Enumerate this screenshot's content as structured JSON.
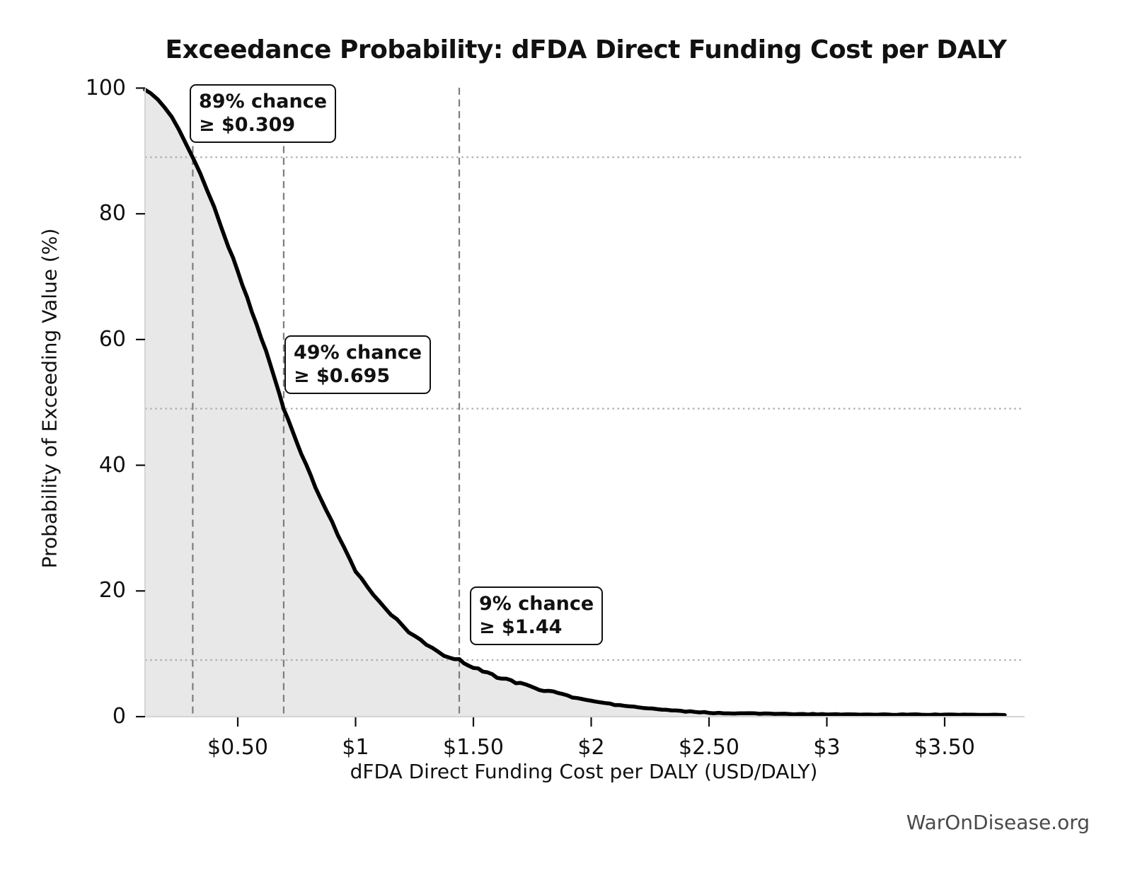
{
  "watermark": "WarOnDisease.org",
  "chart_data": {
    "type": "line",
    "subtype": "exceedance-ccdf",
    "title": "Exceedance Probability: dFDA Direct Funding Cost per DALY",
    "xlabel": "dFDA Direct Funding Cost per DALY (USD/DALY)",
    "ylabel": "Probability of Exceeding Value (%)",
    "x_tick_labels": [
      "$0.50",
      "$1",
      "$1.50",
      "$2",
      "$2.50",
      "$3",
      "$3.50"
    ],
    "x_tick_values": [
      0.5,
      1,
      1.5,
      2,
      2.5,
      3,
      3.5
    ],
    "y_tick_labels": [
      "0",
      "20",
      "40",
      "60",
      "80",
      "100"
    ],
    "y_tick_values": [
      0,
      20,
      40,
      60,
      80,
      100
    ],
    "xlim": [
      0.107,
      3.83
    ],
    "ylim": [
      0,
      100
    ],
    "grid": false,
    "legend": "none",
    "series_name": "Probability of exceeding cost value",
    "curve_ccdf": [
      [
        0.107,
        99.9
      ],
      [
        0.13,
        99.3
      ],
      [
        0.16,
        98.3
      ],
      [
        0.19,
        97.0
      ],
      [
        0.22,
        95.3
      ],
      [
        0.25,
        93.3
      ],
      [
        0.28,
        91.2
      ],
      [
        0.309,
        89.0
      ],
      [
        0.34,
        86.5
      ],
      [
        0.37,
        83.8
      ],
      [
        0.4,
        81.0
      ],
      [
        0.43,
        78.0
      ],
      [
        0.46,
        74.9
      ],
      [
        0.5,
        70.8
      ],
      [
        0.54,
        66.6
      ],
      [
        0.58,
        62.4
      ],
      [
        0.62,
        58.1
      ],
      [
        0.66,
        53.5
      ],
      [
        0.695,
        49.0
      ],
      [
        0.73,
        45.6
      ],
      [
        0.77,
        41.8
      ],
      [
        0.81,
        38.2
      ],
      [
        0.85,
        34.8
      ],
      [
        0.9,
        30.9
      ],
      [
        0.95,
        26.9
      ],
      [
        1.0,
        23.2
      ],
      [
        1.05,
        20.7
      ],
      [
        1.1,
        18.4
      ],
      [
        1.15,
        16.3
      ],
      [
        1.2,
        14.4
      ],
      [
        1.25,
        12.8
      ],
      [
        1.3,
        11.4
      ],
      [
        1.35,
        10.2
      ],
      [
        1.4,
        9.4
      ],
      [
        1.44,
        9.0
      ],
      [
        1.5,
        7.9
      ],
      [
        1.56,
        6.9
      ],
      [
        1.62,
        6.1
      ],
      [
        1.7,
        5.3
      ],
      [
        1.78,
        4.4
      ],
      [
        1.86,
        3.7
      ],
      [
        1.94,
        3.0
      ],
      [
        2.02,
        2.4
      ],
      [
        2.1,
        1.9
      ],
      [
        2.2,
        1.5
      ],
      [
        2.3,
        1.1
      ],
      [
        2.4,
        0.85
      ],
      [
        2.52,
        0.6
      ],
      [
        2.65,
        0.5
      ],
      [
        2.8,
        0.42
      ],
      [
        3.0,
        0.38
      ],
      [
        3.2,
        0.34
      ],
      [
        3.4,
        0.3
      ],
      [
        3.6,
        0.28
      ],
      [
        3.755,
        0.25
      ]
    ],
    "reference_lines": {
      "vertical_dashed_x": [
        0.309,
        0.695,
        1.44
      ],
      "horizontal_dotted_pct": [
        89,
        49,
        9
      ]
    },
    "annotations": [
      {
        "line1": "89% chance",
        "line2": "≥ $0.309",
        "probability_pct": 89,
        "threshold_usd": 0.309
      },
      {
        "line1": "49% chance",
        "line2": "≥ $0.695",
        "probability_pct": 49,
        "threshold_usd": 0.695
      },
      {
        "line1": "9% chance",
        "line2": "≥ $1.44",
        "probability_pct": 9,
        "threshold_usd": 1.44
      }
    ],
    "colors": {
      "curve": "#000000",
      "fill": "#e8e8e8",
      "dashed_line": "#7d7d7d",
      "dotted_line": "#adadad",
      "spine": "#d4d4d4",
      "tick": "#111111",
      "text": "#111111",
      "watermark": "#4a4a4a"
    }
  }
}
